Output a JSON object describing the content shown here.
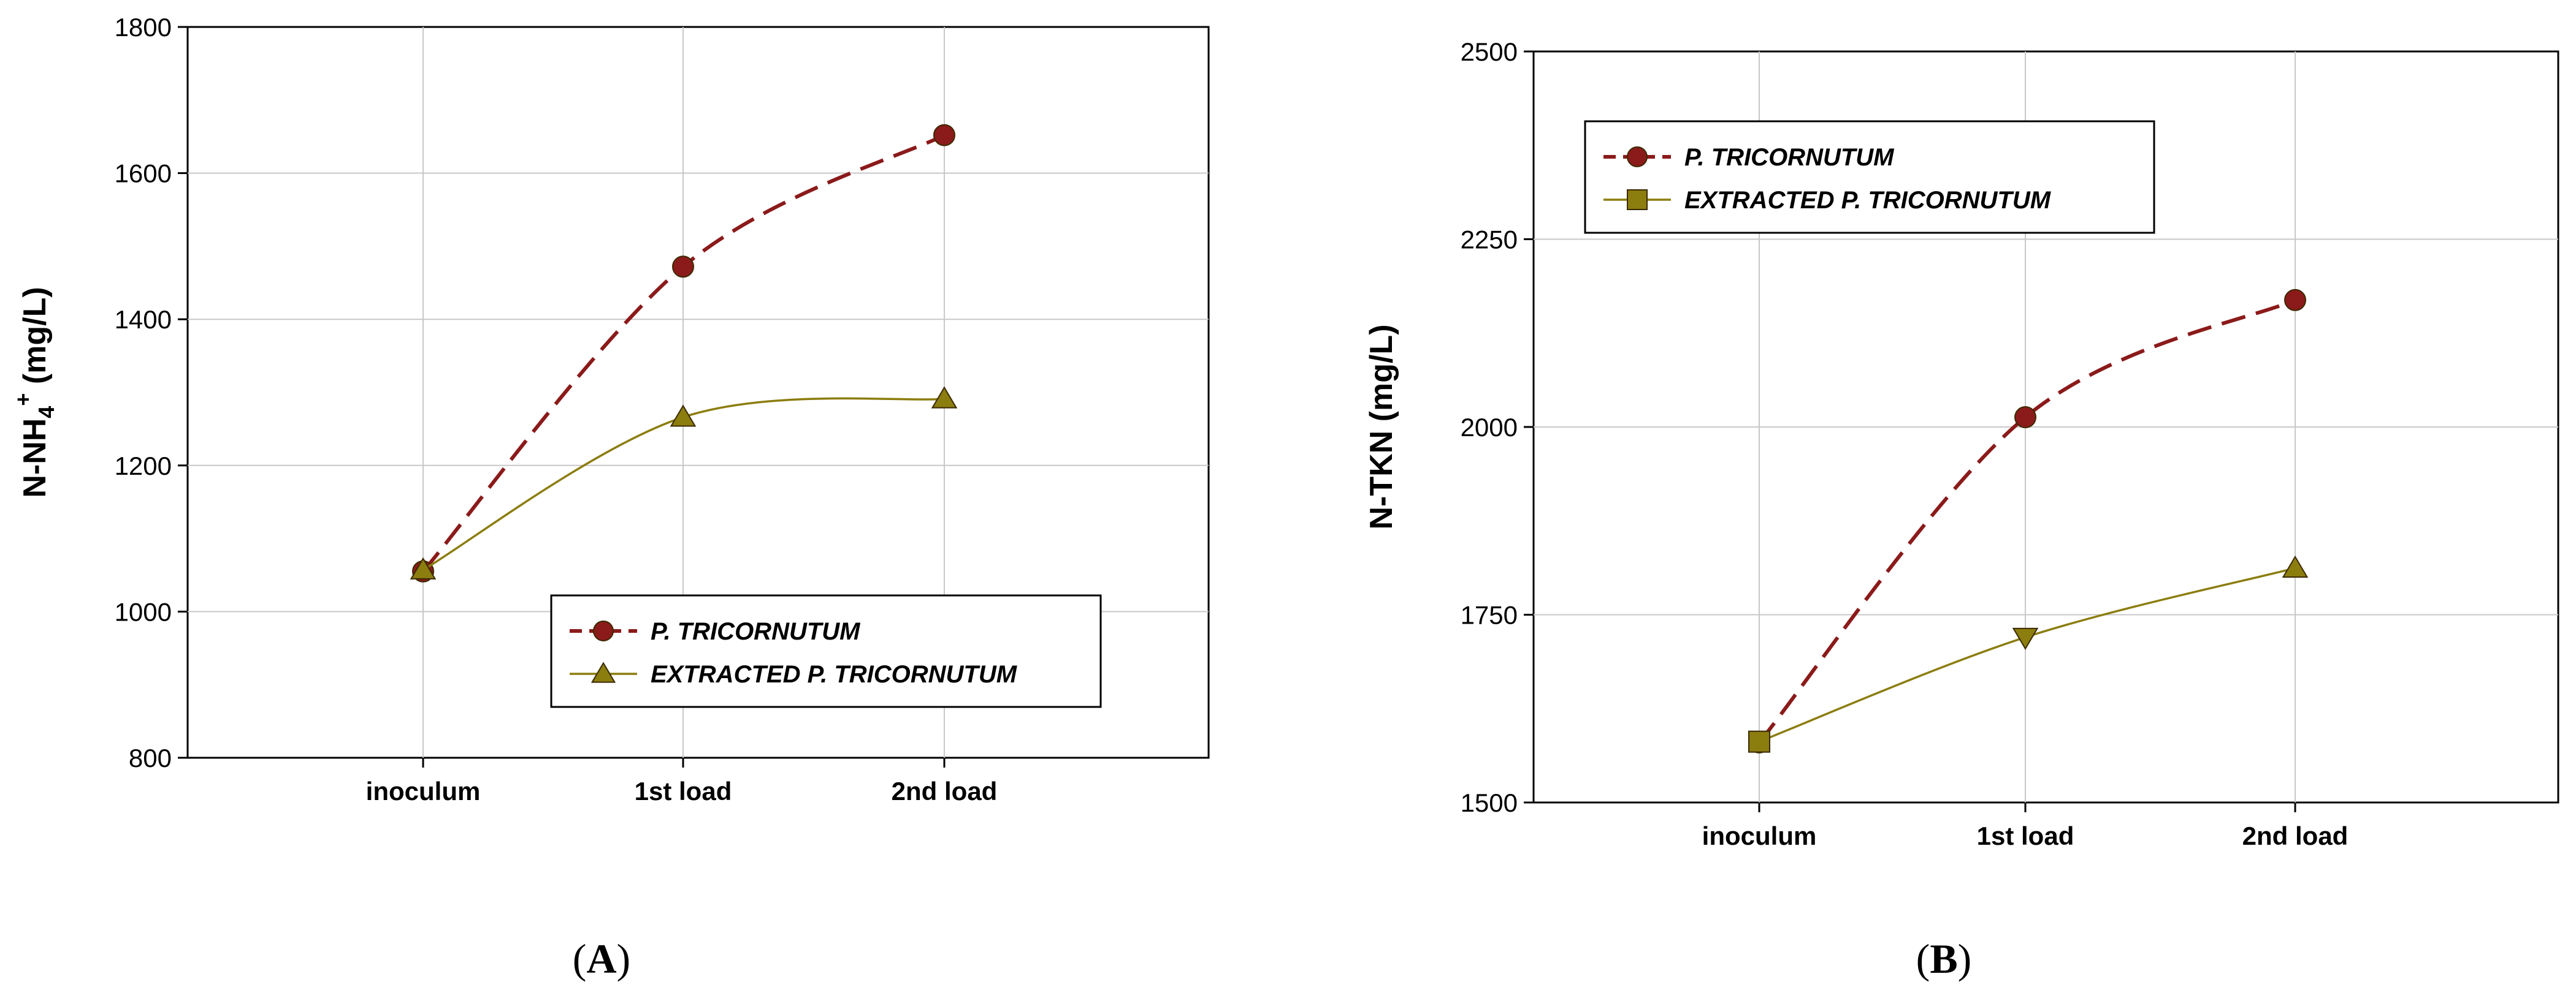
{
  "chart_data": [
    {
      "type": "line",
      "panel": "A",
      "title": "",
      "xlabel": "",
      "ylabel": "N-NH",
      "ylabel_sub": "4",
      "ylabel_sup": "+",
      "ylabel_tail": " (mg/L)",
      "categories": [
        "inoculum",
        "1st load",
        "2nd load"
      ],
      "ylim": [
        800,
        1800
      ],
      "yticks": [
        800,
        1000,
        1200,
        1400,
        1600,
        1800
      ],
      "grid": true,
      "legend_position": "lower-right",
      "series": [
        {
          "name": "P. TRICORNUTUM",
          "values": [
            1055,
            1472,
            1652
          ],
          "color": "#8b1a1a",
          "marker": "circle",
          "line": "dashed"
        },
        {
          "name": "EXTRACTED P. TRICORNUTUM",
          "values": [
            1057,
            1266,
            1291
          ],
          "color": "#8c7d0f",
          "marker": "triangle-up",
          "line": "solid"
        }
      ]
    },
    {
      "type": "line",
      "panel": "B",
      "title": "",
      "xlabel": "",
      "ylabel": "N-TKN (mg/L)",
      "categories": [
        "inoculum",
        "1st load",
        "2nd load"
      ],
      "ylim": [
        1500,
        2500
      ],
      "yticks": [
        1500,
        1750,
        2000,
        2250,
        2500
      ],
      "grid": true,
      "legend_position": "top-left",
      "series": [
        {
          "name": "P. TRICORNUTUM",
          "values": [
            1580,
            2013,
            2169
          ],
          "color": "#8b1a1a",
          "marker": "circle",
          "line": "dashed"
        },
        {
          "name": "EXTRACTED P. TRICORNUTUM",
          "values": [
            1581,
            1720,
            1812
          ],
          "markers": [
            "square",
            "triangle-down",
            "triangle-up"
          ],
          "color": "#8c7d0f",
          "marker": "square",
          "line": "solid"
        }
      ]
    }
  ],
  "panel_labels": {
    "A": "A",
    "B": "B",
    "open": "(",
    "close": ")"
  }
}
